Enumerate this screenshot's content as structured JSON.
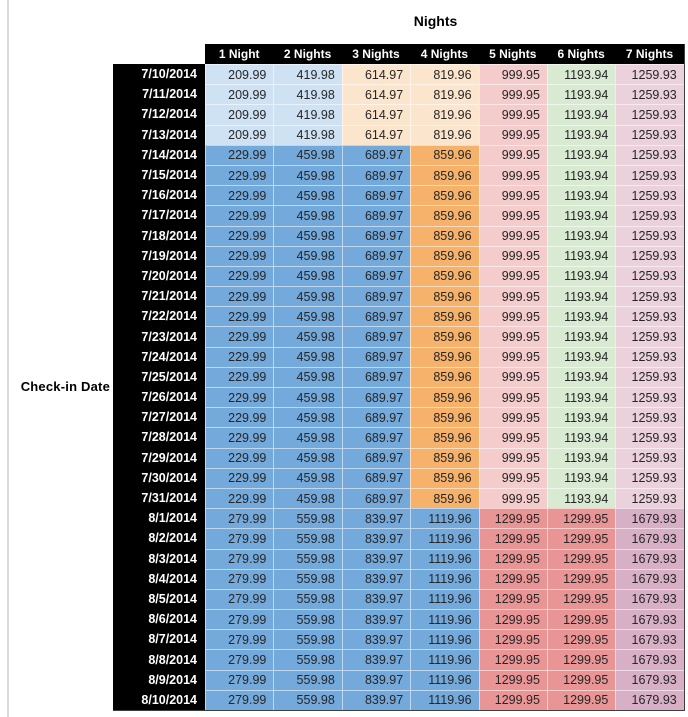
{
  "chart_data": {
    "type": "table",
    "title": "Nights",
    "row_label": "Check-in Date",
    "columns": [
      "1 Night",
      "2 Nights",
      "3 Nights",
      "4 Nights",
      "5 Nights",
      "6 Nights",
      "7 Nights"
    ],
    "row_groups": [
      {
        "dates": [
          "7/10/2014",
          "7/11/2014",
          "7/12/2014",
          "7/13/2014"
        ],
        "values": [
          209.99,
          419.98,
          614.97,
          819.96,
          999.95,
          1193.94,
          1259.93
        ],
        "cell_colors": [
          "#cfe2f3",
          "#cfe2f3",
          "#fce5cd",
          "#fce5cd",
          "#f4cccc",
          "#d9ead3",
          "#ead1dc"
        ]
      },
      {
        "dates": [
          "7/14/2014",
          "7/15/2014",
          "7/16/2014",
          "7/17/2014",
          "7/18/2014",
          "7/19/2014",
          "7/20/2014",
          "7/21/2014",
          "7/22/2014",
          "7/23/2014",
          "7/24/2014",
          "7/25/2014",
          "7/26/2014",
          "7/27/2014",
          "7/28/2014",
          "7/29/2014",
          "7/30/2014",
          "7/31/2014"
        ],
        "values": [
          229.99,
          459.98,
          689.97,
          859.96,
          999.95,
          1193.94,
          1259.93
        ],
        "cell_colors": [
          "#74a9dc",
          "#74a9dc",
          "#74a9dc",
          "#f6b26b",
          "#f4cccc",
          "#d9ead3",
          "#ead1dc"
        ]
      },
      {
        "dates": [
          "8/1/2014",
          "8/2/2014",
          "8/3/2014",
          "8/4/2014",
          "8/5/2014",
          "8/6/2014",
          "8/7/2014",
          "8/8/2014",
          "8/9/2014",
          "8/10/2014"
        ],
        "values": [
          279.99,
          559.98,
          839.97,
          1119.96,
          1299.95,
          1299.95,
          1679.93
        ],
        "cell_colors": [
          "#74a9dc",
          "#74a9dc",
          "#74a9dc",
          "#74a9dc",
          "#ea9595",
          "#ea9595",
          "#d8b0c6"
        ]
      }
    ],
    "styles": {
      "header_bg": "#000000",
      "header_text": "#ffffff",
      "grid_line": "rgba(255,255,255,0.55)"
    }
  }
}
